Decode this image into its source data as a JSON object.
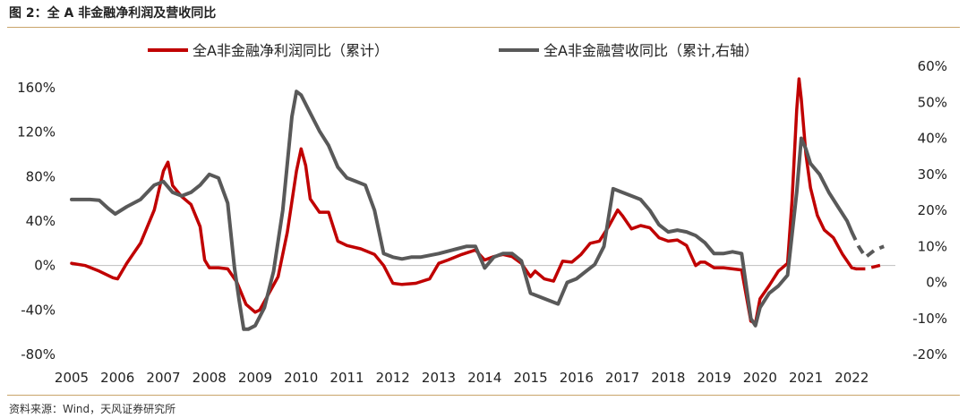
{
  "header": {
    "title": "图 2：全 A 非金融净利润及营收同比"
  },
  "footer": {
    "source": "资料来源：Wind，天风证券研究所"
  },
  "colors": {
    "profit": "#c00000",
    "revenue": "#595959",
    "rule": "#c9a46a"
  },
  "chart_data": {
    "type": "line",
    "title": "图 2：全 A 非金融净利润及营收同比",
    "x_ticks": [
      "2005",
      "2006",
      "2007",
      "2008",
      "2009",
      "2010",
      "2011",
      "2012",
      "2013",
      "2014",
      "2015",
      "2016",
      "2017",
      "2018",
      "2019",
      "2020",
      "2021",
      "2022"
    ],
    "x_range": [
      2005,
      2022.95
    ],
    "y_left": {
      "min": -80,
      "max": 160,
      "ticks": [
        160,
        120,
        80,
        40,
        0,
        -40,
        -80
      ],
      "unit": "%"
    },
    "y_right": {
      "min": -20,
      "max": 60,
      "ticks": [
        60,
        50,
        40,
        30,
        20,
        10,
        0,
        -10,
        -20
      ],
      "unit": "%"
    },
    "legend_position": "top",
    "grid": false,
    "series": [
      {
        "name": "全A非金融净利润同比（累计）",
        "axis": "left",
        "color": "#c00000",
        "dashed_from": 2022.1,
        "points": [
          [
            2005.0,
            2
          ],
          [
            2005.3,
            0
          ],
          [
            2005.6,
            -5
          ],
          [
            2005.9,
            -11
          ],
          [
            2006.0,
            -12
          ],
          [
            2006.2,
            2
          ],
          [
            2006.5,
            20
          ],
          [
            2006.8,
            50
          ],
          [
            2007.0,
            85
          ],
          [
            2007.1,
            93
          ],
          [
            2007.2,
            72
          ],
          [
            2007.4,
            62
          ],
          [
            2007.6,
            55
          ],
          [
            2007.8,
            35
          ],
          [
            2007.9,
            5
          ],
          [
            2008.0,
            -2
          ],
          [
            2008.2,
            -2
          ],
          [
            2008.4,
            -3
          ],
          [
            2008.6,
            -15
          ],
          [
            2008.8,
            -35
          ],
          [
            2009.0,
            -42
          ],
          [
            2009.1,
            -40
          ],
          [
            2009.3,
            -25
          ],
          [
            2009.5,
            -10
          ],
          [
            2009.7,
            30
          ],
          [
            2009.9,
            85
          ],
          [
            2010.0,
            105
          ],
          [
            2010.1,
            90
          ],
          [
            2010.2,
            60
          ],
          [
            2010.4,
            48
          ],
          [
            2010.6,
            48
          ],
          [
            2010.8,
            22
          ],
          [
            2011.0,
            18
          ],
          [
            2011.3,
            15
          ],
          [
            2011.6,
            10
          ],
          [
            2011.8,
            0
          ],
          [
            2012.0,
            -16
          ],
          [
            2012.2,
            -17
          ],
          [
            2012.5,
            -16
          ],
          [
            2012.8,
            -12
          ],
          [
            2013.0,
            2
          ],
          [
            2013.2,
            5
          ],
          [
            2013.5,
            10
          ],
          [
            2013.8,
            14
          ],
          [
            2014.0,
            5
          ],
          [
            2014.2,
            8
          ],
          [
            2014.4,
            10
          ],
          [
            2014.6,
            8
          ],
          [
            2014.8,
            2
          ],
          [
            2015.0,
            -10
          ],
          [
            2015.1,
            -5
          ],
          [
            2015.3,
            -12
          ],
          [
            2015.5,
            -14
          ],
          [
            2015.7,
            4
          ],
          [
            2015.9,
            3
          ],
          [
            2016.1,
            10
          ],
          [
            2016.3,
            20
          ],
          [
            2016.5,
            22
          ],
          [
            2016.7,
            35
          ],
          [
            2016.9,
            50
          ],
          [
            2017.0,
            45
          ],
          [
            2017.2,
            33
          ],
          [
            2017.4,
            36
          ],
          [
            2017.6,
            34
          ],
          [
            2017.8,
            25
          ],
          [
            2018.0,
            22
          ],
          [
            2018.2,
            23
          ],
          [
            2018.4,
            18
          ],
          [
            2018.6,
            0
          ],
          [
            2018.7,
            3
          ],
          [
            2018.8,
            3
          ],
          [
            2019.0,
            -2
          ],
          [
            2019.2,
            -2
          ],
          [
            2019.4,
            -3
          ],
          [
            2019.6,
            -4
          ],
          [
            2019.8,
            -50
          ],
          [
            2019.9,
            -52
          ],
          [
            2020.0,
            -30
          ],
          [
            2020.2,
            -18
          ],
          [
            2020.4,
            -5
          ],
          [
            2020.6,
            2
          ],
          [
            2020.7,
            60
          ],
          [
            2020.8,
            140
          ],
          [
            2020.85,
            168
          ],
          [
            2020.9,
            150
          ],
          [
            2021.0,
            100
          ],
          [
            2021.1,
            70
          ],
          [
            2021.25,
            45
          ],
          [
            2021.4,
            32
          ],
          [
            2021.6,
            25
          ],
          [
            2021.8,
            10
          ],
          [
            2022.0,
            -2
          ],
          [
            2022.1,
            -3
          ],
          [
            2022.3,
            -3
          ],
          [
            2022.5,
            -1
          ],
          [
            2022.7,
            1
          ]
        ]
      },
      {
        "name": "全A非金融营收同比（累计,右轴）",
        "axis": "right",
        "color": "#595959",
        "dashed_from": 2022.1,
        "points": [
          [
            2005.0,
            23
          ],
          [
            2005.4,
            23
          ],
          [
            2005.6,
            22.8
          ],
          [
            2005.8,
            20.5
          ],
          [
            2005.95,
            19
          ],
          [
            2006.2,
            21
          ],
          [
            2006.5,
            23
          ],
          [
            2006.8,
            27
          ],
          [
            2007.0,
            28
          ],
          [
            2007.2,
            25
          ],
          [
            2007.4,
            24
          ],
          [
            2007.6,
            25
          ],
          [
            2007.8,
            27
          ],
          [
            2008.0,
            30
          ],
          [
            2008.2,
            29
          ],
          [
            2008.4,
            22
          ],
          [
            2008.55,
            4
          ],
          [
            2008.65,
            -5
          ],
          [
            2008.75,
            -13
          ],
          [
            2008.85,
            -13
          ],
          [
            2009.0,
            -12
          ],
          [
            2009.2,
            -7
          ],
          [
            2009.4,
            3
          ],
          [
            2009.6,
            20
          ],
          [
            2009.8,
            46
          ],
          [
            2009.9,
            53
          ],
          [
            2010.0,
            52
          ],
          [
            2010.2,
            47
          ],
          [
            2010.4,
            42
          ],
          [
            2010.6,
            38
          ],
          [
            2010.8,
            32
          ],
          [
            2011.0,
            29
          ],
          [
            2011.2,
            28
          ],
          [
            2011.4,
            27
          ],
          [
            2011.6,
            20
          ],
          [
            2011.8,
            8
          ],
          [
            2012.0,
            7
          ],
          [
            2012.2,
            6.5
          ],
          [
            2012.4,
            7
          ],
          [
            2012.6,
            7
          ],
          [
            2012.8,
            7.5
          ],
          [
            2013.0,
            8
          ],
          [
            2013.3,
            9
          ],
          [
            2013.6,
            10
          ],
          [
            2013.8,
            10
          ],
          [
            2014.0,
            4
          ],
          [
            2014.2,
            7
          ],
          [
            2014.4,
            8
          ],
          [
            2014.6,
            8
          ],
          [
            2014.8,
            6
          ],
          [
            2015.0,
            -3
          ],
          [
            2015.2,
            -4
          ],
          [
            2015.4,
            -5
          ],
          [
            2015.6,
            -6
          ],
          [
            2015.8,
            0
          ],
          [
            2016.0,
            1
          ],
          [
            2016.2,
            3
          ],
          [
            2016.4,
            5
          ],
          [
            2016.6,
            10
          ],
          [
            2016.8,
            26
          ],
          [
            2017.0,
            25
          ],
          [
            2017.2,
            24
          ],
          [
            2017.4,
            23
          ],
          [
            2017.6,
            20
          ],
          [
            2017.8,
            16
          ],
          [
            2018.0,
            14
          ],
          [
            2018.2,
            14.5
          ],
          [
            2018.4,
            14
          ],
          [
            2018.6,
            13
          ],
          [
            2018.8,
            11
          ],
          [
            2019.0,
            8
          ],
          [
            2019.2,
            8
          ],
          [
            2019.4,
            8.5
          ],
          [
            2019.6,
            8
          ],
          [
            2019.8,
            -10
          ],
          [
            2019.9,
            -12
          ],
          [
            2020.0,
            -7
          ],
          [
            2020.2,
            -3
          ],
          [
            2020.4,
            -1
          ],
          [
            2020.6,
            2
          ],
          [
            2020.8,
            25
          ],
          [
            2020.9,
            40
          ],
          [
            2021.0,
            37
          ],
          [
            2021.1,
            33
          ],
          [
            2021.3,
            30
          ],
          [
            2021.5,
            25
          ],
          [
            2021.7,
            21
          ],
          [
            2021.9,
            17
          ],
          [
            2022.0,
            14
          ],
          [
            2022.15,
            10
          ],
          [
            2022.3,
            7
          ],
          [
            2022.5,
            9
          ],
          [
            2022.7,
            10
          ]
        ]
      }
    ]
  }
}
